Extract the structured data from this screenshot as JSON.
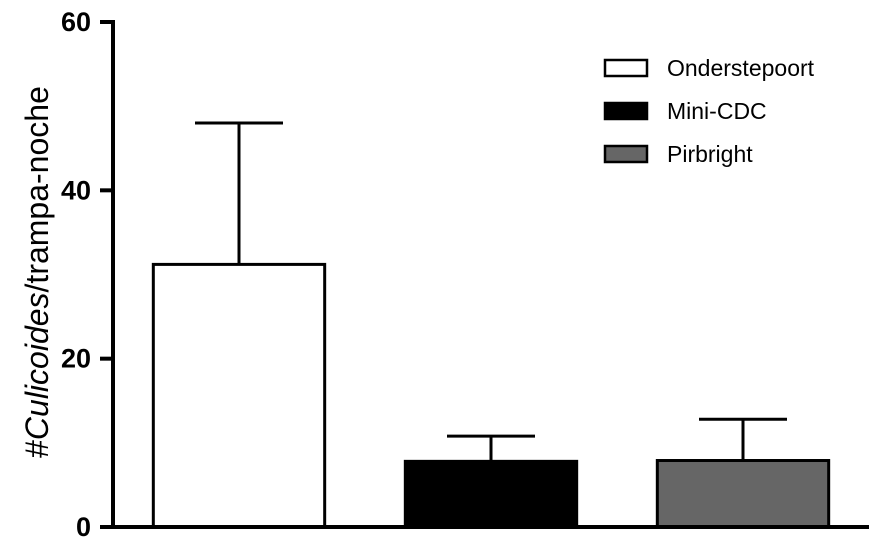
{
  "chart_data": {
    "type": "bar",
    "ylabel_prefix": "#",
    "ylabel_italic": "Culicoides",
    "ylabel_suffix": "/trampa-noche",
    "ylim": [
      0,
      60
    ],
    "yticks": [
      "0",
      "20",
      "40",
      "60"
    ],
    "series": [
      {
        "name": "Onderstepoort",
        "value": 31.2,
        "error": 16.8,
        "color": "#ffffff"
      },
      {
        "name": "Mini-CDC",
        "value": 7.8,
        "error": 3.0,
        "color": "#000000"
      },
      {
        "name": "Pirbright",
        "value": 7.9,
        "error": 4.9,
        "color": "#666666"
      }
    ],
    "grid": false,
    "legend_position": "top-right"
  }
}
